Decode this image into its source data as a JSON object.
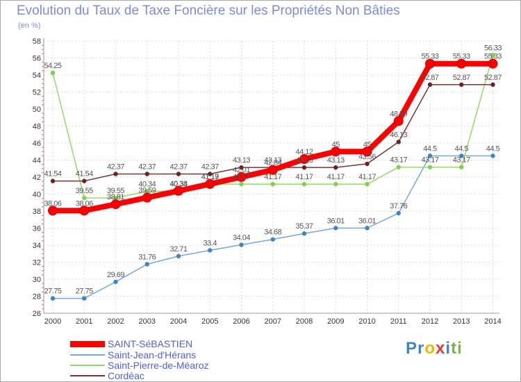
{
  "header": {
    "title": "Evolution du Taux de Taxe Foncière sur les Propriétés Non Bâties",
    "subtitle": "(en %)"
  },
  "chart_data": {
    "type": "line",
    "title": "Evolution du Taux de Taxe Foncière sur les Propriétés Non Bâties",
    "ylabel": "(en %)",
    "xlabel": "",
    "ylim": [
      26,
      58
    ],
    "yticks": [
      26,
      28,
      30,
      32,
      34,
      36,
      38,
      40,
      42,
      44,
      46,
      48,
      50,
      52,
      54,
      56,
      58
    ],
    "grid": true,
    "categories": [
      "2000",
      "2001",
      "2002",
      "2003",
      "2004",
      "2005",
      "2006",
      "2007",
      "2008",
      "2009",
      "2010",
      "2011",
      "2012",
      "2013",
      "2014"
    ],
    "series": [
      {
        "name": "Saint-Jean-d'Hérans",
        "color": "#6fa8dc",
        "marker": "#3d85c6",
        "values": [
          27.75,
          27.75,
          29.69,
          31.76,
          32.71,
          33.4,
          34.04,
          34.68,
          35.37,
          36.01,
          36.01,
          37.76,
          44.5,
          44.5,
          44.5
        ],
        "labels": [
          "27.75",
          "27.75",
          "29.69",
          "31.76",
          "32.71",
          "33.4",
          "34.04",
          "34.68",
          "35.37",
          "36.01",
          "36.01",
          "37.76",
          "44.5",
          "44.5",
          "44.5"
        ]
      },
      {
        "name": "Saint-Pierre-de-Méaroz",
        "color": "#93d964",
        "marker": "#7cd34a",
        "values": [
          54.25,
          39.55,
          39.55,
          40.34,
          40.34,
          41.17,
          41.17,
          41.17,
          41.17,
          41.17,
          41.17,
          43.17,
          43.17,
          43.17,
          56.33
        ],
        "labels": [
          "54.25",
          "39.55",
          "39.55",
          "40.34",
          "40.34",
          "41.17",
          "41.17",
          "41.17",
          "41.17",
          "41.17",
          "41.17",
          "43.17",
          "43.17",
          "43.17",
          "56.33"
        ]
      },
      {
        "name": "Cordéac",
        "color": "#7a3333",
        "marker": "#6b2424",
        "values": [
          41.54,
          41.54,
          42.37,
          42.37,
          42.37,
          42.37,
          43.13,
          43.13,
          43.13,
          43.13,
          43.56,
          46.13,
          52.87,
          52.87,
          52.87
        ],
        "labels": [
          "41.54",
          "41.54",
          "42.37",
          "42.37",
          "42.37",
          "42.37",
          "43.13",
          "43.13",
          "43.13",
          "43.13",
          "43.56",
          "46.13",
          "52.87",
          "52.87",
          "52.87"
        ]
      },
      {
        "name": "SAINT-SéBASTIEN",
        "color": "#ff0000",
        "marker": "#ff0000",
        "values": [
          38.06,
          38.06,
          38.81,
          39.59,
          40.38,
          41.19,
          42.01,
          42.84,
          44.12,
          45,
          45,
          48.59,
          55.33,
          55.33,
          55.33
        ],
        "labels": [
          "38.06",
          "38.06",
          "38.81",
          "39.59",
          "40.38",
          "41.19",
          "42.01",
          "42.84",
          "44.12",
          "45",
          "45",
          "48.59",
          "55.33",
          "55.33",
          "55.33"
        ]
      }
    ]
  },
  "legend": [
    {
      "name": "SAINT-SéBASTIEN",
      "color": "#ff0000"
    },
    {
      "name": "Saint-Jean-d'Hérans",
      "color": "#6fa8dc"
    },
    {
      "name": "Saint-Pierre-de-Méaroz",
      "color": "#93d964"
    },
    {
      "name": "Cordéac",
      "color": "#7a3333"
    }
  ],
  "logo": {
    "letters": [
      "P",
      "r",
      "o",
      "x",
      "i",
      "t",
      "i"
    ],
    "colors": [
      "#3d85c6",
      "#3d85c6",
      "#f4b400",
      "#e53935",
      "#3d85c6",
      "#7cb342",
      "#7cb342"
    ]
  }
}
